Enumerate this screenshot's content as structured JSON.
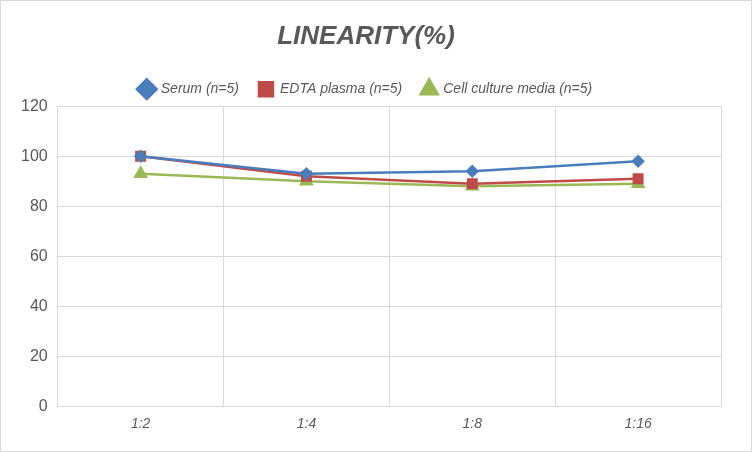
{
  "chart_data": {
    "type": "line",
    "title": "LINEARITY(%)",
    "categories": [
      "1:2",
      "1:4",
      "1:8",
      "1:16"
    ],
    "series": [
      {
        "name": "Serum (n=5)",
        "color": "#4a7ebb",
        "marker": "diamond",
        "values": [
          100,
          93,
          94,
          98
        ]
      },
      {
        "name": "EDTA plasma (n=5)",
        "color": "#be4b48",
        "marker": "square",
        "values": [
          100,
          92,
          89,
          91
        ]
      },
      {
        "name": "Cell culture media (n=5)",
        "color": "#98b954",
        "marker": "triangle",
        "values": [
          93,
          90,
          88,
          89
        ]
      }
    ],
    "ylim": [
      0,
      120
    ],
    "yticks": [
      0,
      20,
      40,
      60,
      80,
      100,
      120
    ],
    "grid": true,
    "legend": "top"
  }
}
